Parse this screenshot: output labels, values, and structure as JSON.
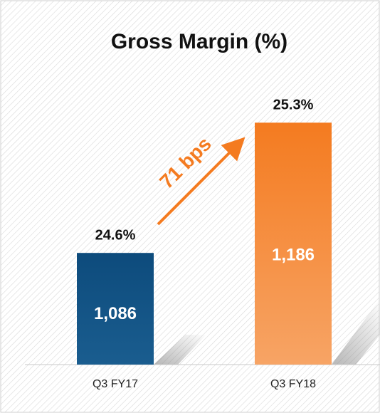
{
  "chart_data": {
    "type": "bar",
    "title": "Gross Margin (%)",
    "categories": [
      "Q3 FY17",
      "Q3 FY18"
    ],
    "values": [
      24.6,
      25.3
    ],
    "value_labels": [
      "24.6%",
      "25.3%"
    ],
    "colors": [
      "#0d4b7c",
      "#f47b20"
    ],
    "secondary_values": [
      1086,
      1186
    ],
    "secondary_value_labels": [
      "1,086",
      "1,186"
    ],
    "annotation": "71 bps",
    "ylim": [
      24,
      25.5
    ]
  }
}
